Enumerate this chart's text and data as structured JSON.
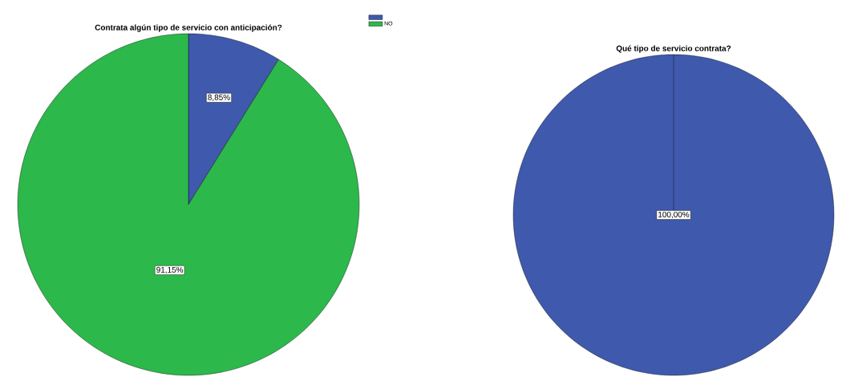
{
  "chart_data": [
    {
      "type": "pie",
      "title": "Contrata algún tipo de servicio con anticipación?",
      "categories": [
        null,
        "NO"
      ],
      "values": [
        8.85,
        91.15
      ],
      "colors": [
        "#3f59ad",
        "#2db84b"
      ],
      "value_labels": [
        "8,85%",
        "91,15%"
      ],
      "legend": "top right"
    },
    {
      "type": "pie",
      "title": "Qué tipo de servicio contrata?",
      "categories": [
        null
      ],
      "values": [
        100
      ],
      "colors": [
        "#3f59ad"
      ],
      "value_labels": [
        "100,00%"
      ],
      "legend": false
    }
  ]
}
